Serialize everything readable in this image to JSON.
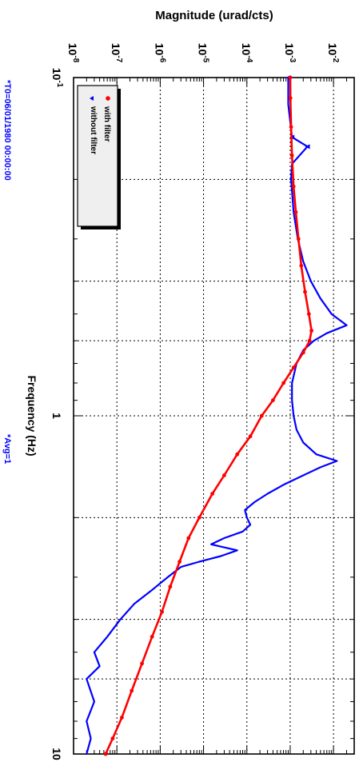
{
  "chart_data": {
    "type": "line",
    "orientation": "rotated-90-clockwise",
    "ylabel": "Magnitude (urad/cts)",
    "xlabel": "Frequency (Hz)",
    "x_scale": "log",
    "y_scale": "log",
    "xlim": [
      0.1,
      10
    ],
    "ylim": [
      1e-08,
      0.03
    ],
    "x_tick_labels": [
      "10",
      "1",
      "10"
    ],
    "x_tick_label_exponents": [
      "-1",
      "",
      ""
    ],
    "y_tick_labels": [
      "10",
      "10",
      "10",
      "10",
      "10",
      "10",
      "10"
    ],
    "y_tick_label_exponents": [
      "-8",
      "-7",
      "-6",
      "-5",
      "-4",
      "-3",
      "-2"
    ],
    "grid": true,
    "legend_position": "top-left",
    "annotations": [
      "*T0=06/01/1980 00:00:00",
      "*Avg=1"
    ],
    "colors": {
      "with_filter": "#ff0000",
      "without_filter": "#0000ff",
      "annotation": "#0000ff"
    },
    "series": [
      {
        "name": "with filter",
        "marker": "circle",
        "x": [
          0.1,
          0.115,
          0.14,
          0.17,
          0.21,
          0.25,
          0.3,
          0.36,
          0.43,
          0.5,
          0.56,
          0.6,
          0.65,
          0.72,
          0.8,
          0.9,
          1.0,
          1.15,
          1.3,
          1.5,
          1.7,
          2.0,
          2.3,
          2.7,
          3.2,
          3.8,
          4.5,
          5.4,
          6.5,
          7.8,
          9.0,
          10.0
        ],
        "y": [
          0.001,
          0.00101,
          0.00105,
          0.0011,
          0.0012,
          0.00135,
          0.00155,
          0.0018,
          0.0022,
          0.0027,
          0.0031,
          0.0028,
          0.002,
          0.0012,
          0.0007,
          0.0004,
          0.00022,
          0.00012,
          6e-05,
          3e-05,
          1.6e-05,
          8e-06,
          4.5e-06,
          2.8e-06,
          1.7e-06,
          1.1e-06,
          6.5e-07,
          3.8e-07,
          2.2e-07,
          1.3e-07,
          8e-08,
          5.5e-08
        ]
      },
      {
        "name": "without filter",
        "marker": "triangle",
        "x": [
          0.1,
          0.12,
          0.15,
          0.16,
          0.18,
          0.2,
          0.25,
          0.3,
          0.35,
          0.4,
          0.45,
          0.5,
          0.54,
          0.57,
          0.6,
          0.64,
          0.7,
          0.8,
          0.9,
          1.0,
          1.1,
          1.2,
          1.3,
          1.36,
          1.42,
          1.5,
          1.6,
          1.7,
          1.8,
          1.9,
          2.0,
          2.1,
          2.2,
          2.3,
          2.4,
          2.5,
          2.6,
          2.7,
          2.8,
          3.0,
          3.3,
          3.6,
          4.0,
          4.5,
          5.0,
          5.5,
          6.0,
          7.0,
          8.0,
          9.0,
          10.0
        ],
        "y": [
          0.0009,
          0.0009,
          0.0011,
          0.0025,
          0.0011,
          0.00105,
          0.0012,
          0.0015,
          0.002,
          0.003,
          0.005,
          0.009,
          0.02,
          0.007,
          0.0035,
          0.002,
          0.0014,
          0.0011,
          0.0011,
          0.0012,
          0.0014,
          0.002,
          0.004,
          0.012,
          0.005,
          0.002,
          0.0007,
          0.0003,
          0.00015,
          9e-05,
          0.0001,
          0.00012,
          8e-05,
          3e-05,
          1.5e-05,
          6e-05,
          2.5e-05,
          8e-06,
          3e-06,
          1.5e-06,
          6e-07,
          2.5e-07,
          1.2e-07,
          6e-08,
          3e-08,
          4e-08,
          2e-08,
          3e-08,
          2e-08,
          2.5e-08,
          2e-08
        ]
      }
    ]
  }
}
